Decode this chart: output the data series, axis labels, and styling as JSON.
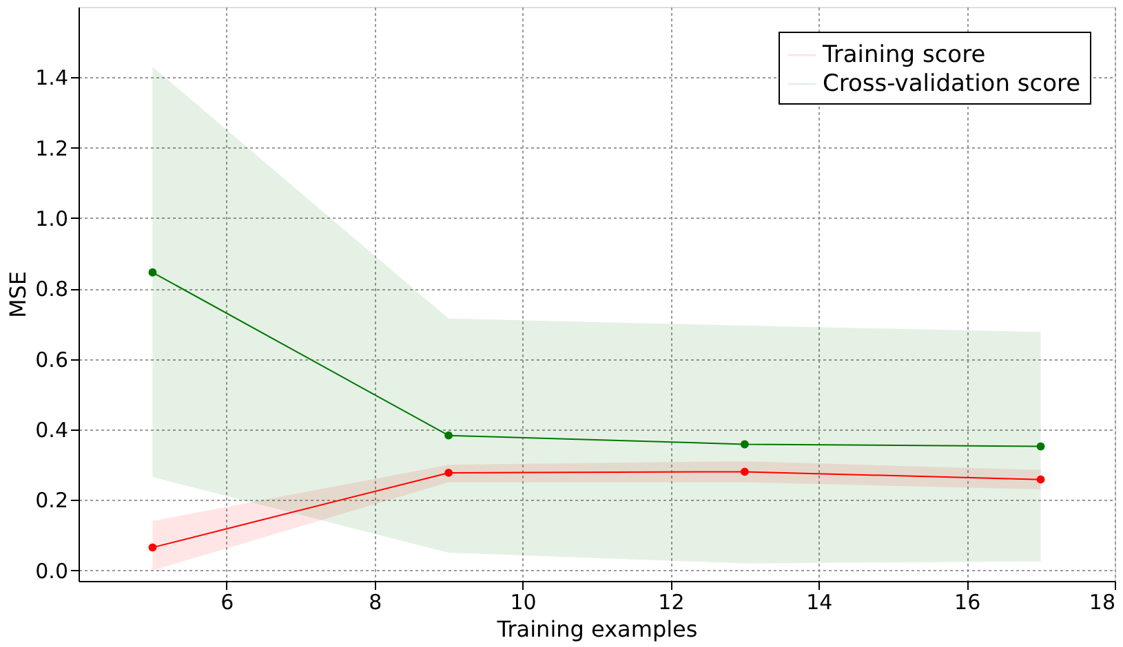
{
  "chart_data": {
    "type": "line",
    "xlabel": "Training examples",
    "ylabel": "MSE",
    "x": [
      5,
      9,
      13,
      17
    ],
    "series": [
      {
        "name": "Training score",
        "color": "#ff0000",
        "values": [
          0.065,
          0.277,
          0.28,
          0.258
        ],
        "lower": [
          0.0,
          0.25,
          0.25,
          0.23
        ],
        "upper": [
          0.14,
          0.3,
          0.31,
          0.285
        ]
      },
      {
        "name": "Cross-validation score",
        "color": "#007700",
        "values": [
          0.846,
          0.383,
          0.358,
          0.352
        ],
        "lower": [
          0.265,
          0.05,
          0.02,
          0.025
        ],
        "upper": [
          1.43,
          0.715,
          0.695,
          0.677
        ]
      }
    ],
    "xlim": [
      4,
      18
    ],
    "xticks": [
      6,
      8,
      10,
      12,
      14,
      16,
      18
    ],
    "ylim": [
      -0.03,
      1.6
    ],
    "yticks": [
      {
        "value": 0,
        "label": "0.0"
      },
      0.2,
      0.4,
      0.6,
      0.8,
      {
        "value": 1,
        "label": "1.0"
      },
      1.2,
      1.4
    ],
    "grid": true,
    "legend": "top right",
    "marker": "circle",
    "line_style": "solid"
  }
}
